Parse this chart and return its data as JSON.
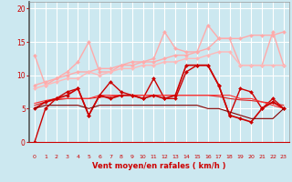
{
  "x": [
    0,
    1,
    2,
    3,
    4,
    5,
    6,
    7,
    8,
    9,
    10,
    11,
    12,
    13,
    14,
    15,
    16,
    17,
    18,
    19,
    20,
    21,
    22,
    23
  ],
  "series": [
    {
      "label": "line1_light",
      "color": "#ffaaaa",
      "linewidth": 1.0,
      "marker": "D",
      "markersize": 2.0,
      "values": [
        13.0,
        8.5,
        9.5,
        10.5,
        12.0,
        15.0,
        10.5,
        10.5,
        11.5,
        12.0,
        12.0,
        12.5,
        16.5,
        14.0,
        13.5,
        13.5,
        17.5,
        15.5,
        15.5,
        11.5,
        11.5,
        11.5,
        16.5,
        11.5
      ]
    },
    {
      "label": "line2_light",
      "color": "#ffaaaa",
      "linewidth": 1.0,
      "marker": "D",
      "markersize": 2.0,
      "values": [
        8.5,
        9.0,
        9.5,
        10.0,
        10.5,
        10.5,
        11.0,
        11.0,
        11.5,
        11.5,
        12.0,
        12.0,
        12.5,
        13.0,
        13.0,
        13.5,
        14.0,
        15.5,
        15.5,
        15.5,
        16.0,
        16.0,
        16.0,
        16.5
      ]
    },
    {
      "label": "line3_light",
      "color": "#ffb8b8",
      "linewidth": 1.0,
      "marker": "D",
      "markersize": 2.0,
      "values": [
        8.0,
        8.5,
        9.0,
        9.5,
        9.5,
        10.5,
        10.0,
        10.5,
        11.0,
        11.0,
        11.5,
        11.5,
        12.0,
        12.0,
        12.5,
        12.5,
        13.0,
        13.5,
        13.5,
        11.5,
        11.5,
        11.5,
        11.5,
        11.5
      ]
    },
    {
      "label": "line4_dark",
      "color": "#cc0000",
      "linewidth": 1.0,
      "marker": "D",
      "markersize": 2.0,
      "values": [
        0.0,
        5.0,
        6.5,
        7.5,
        8.0,
        4.0,
        7.0,
        9.0,
        7.5,
        7.0,
        6.5,
        9.5,
        6.5,
        6.5,
        10.5,
        11.5,
        11.5,
        8.5,
        4.0,
        8.0,
        7.5,
        5.0,
        6.5,
        5.0
      ]
    },
    {
      "label": "line5_dark",
      "color": "#dd2222",
      "linewidth": 0.8,
      "marker": null,
      "markersize": 0,
      "values": [
        5.5,
        6.0,
        6.3,
        6.5,
        6.5,
        6.5,
        6.7,
        6.8,
        7.0,
        7.0,
        7.0,
        7.0,
        7.0,
        7.0,
        7.0,
        7.0,
        7.0,
        6.8,
        6.5,
        6.3,
        6.2,
        6.0,
        5.8,
        5.5
      ]
    },
    {
      "label": "line6_dark",
      "color": "#ff3333",
      "linewidth": 0.8,
      "marker": null,
      "markersize": 0,
      "values": [
        5.8,
        6.2,
        6.5,
        6.5,
        6.5,
        6.5,
        7.0,
        7.0,
        7.0,
        7.0,
        7.0,
        7.0,
        7.0,
        7.0,
        7.0,
        7.0,
        7.0,
        7.0,
        7.0,
        6.5,
        6.5,
        6.0,
        5.5,
        5.0
      ]
    },
    {
      "label": "line7_dark",
      "color": "#cc0000",
      "linewidth": 1.2,
      "marker": "D",
      "markersize": 2.0,
      "values": [
        5.0,
        6.0,
        6.5,
        7.0,
        8.0,
        4.0,
        7.0,
        6.5,
        7.0,
        7.0,
        6.5,
        7.0,
        6.5,
        7.0,
        11.5,
        11.5,
        11.5,
        8.5,
        4.0,
        3.5,
        3.0,
        5.0,
        6.0,
        5.0
      ]
    },
    {
      "label": "line8_dark",
      "color": "#880000",
      "linewidth": 0.8,
      "marker": null,
      "markersize": 0,
      "values": [
        5.0,
        5.5,
        5.5,
        5.5,
        5.5,
        5.0,
        5.5,
        5.5,
        5.5,
        5.5,
        5.5,
        5.5,
        5.5,
        5.5,
        5.5,
        5.5,
        5.0,
        5.0,
        4.5,
        4.0,
        3.5,
        3.5,
        3.5,
        5.0
      ]
    }
  ],
  "xlabel": "Vent moyen/en rafales ( km/h )",
  "ylim": [
    0,
    21
  ],
  "xlim": [
    -0.5,
    23.5
  ],
  "yticks": [
    0,
    5,
    10,
    15,
    20
  ],
  "xticks": [
    0,
    1,
    2,
    3,
    4,
    5,
    6,
    7,
    8,
    9,
    10,
    11,
    12,
    13,
    14,
    15,
    16,
    17,
    18,
    19,
    20,
    21,
    22,
    23
  ],
  "bg_color": "#cce8f0",
  "grid_color": "#ffffff",
  "tick_color": "#cc0000",
  "label_color": "#cc0000"
}
